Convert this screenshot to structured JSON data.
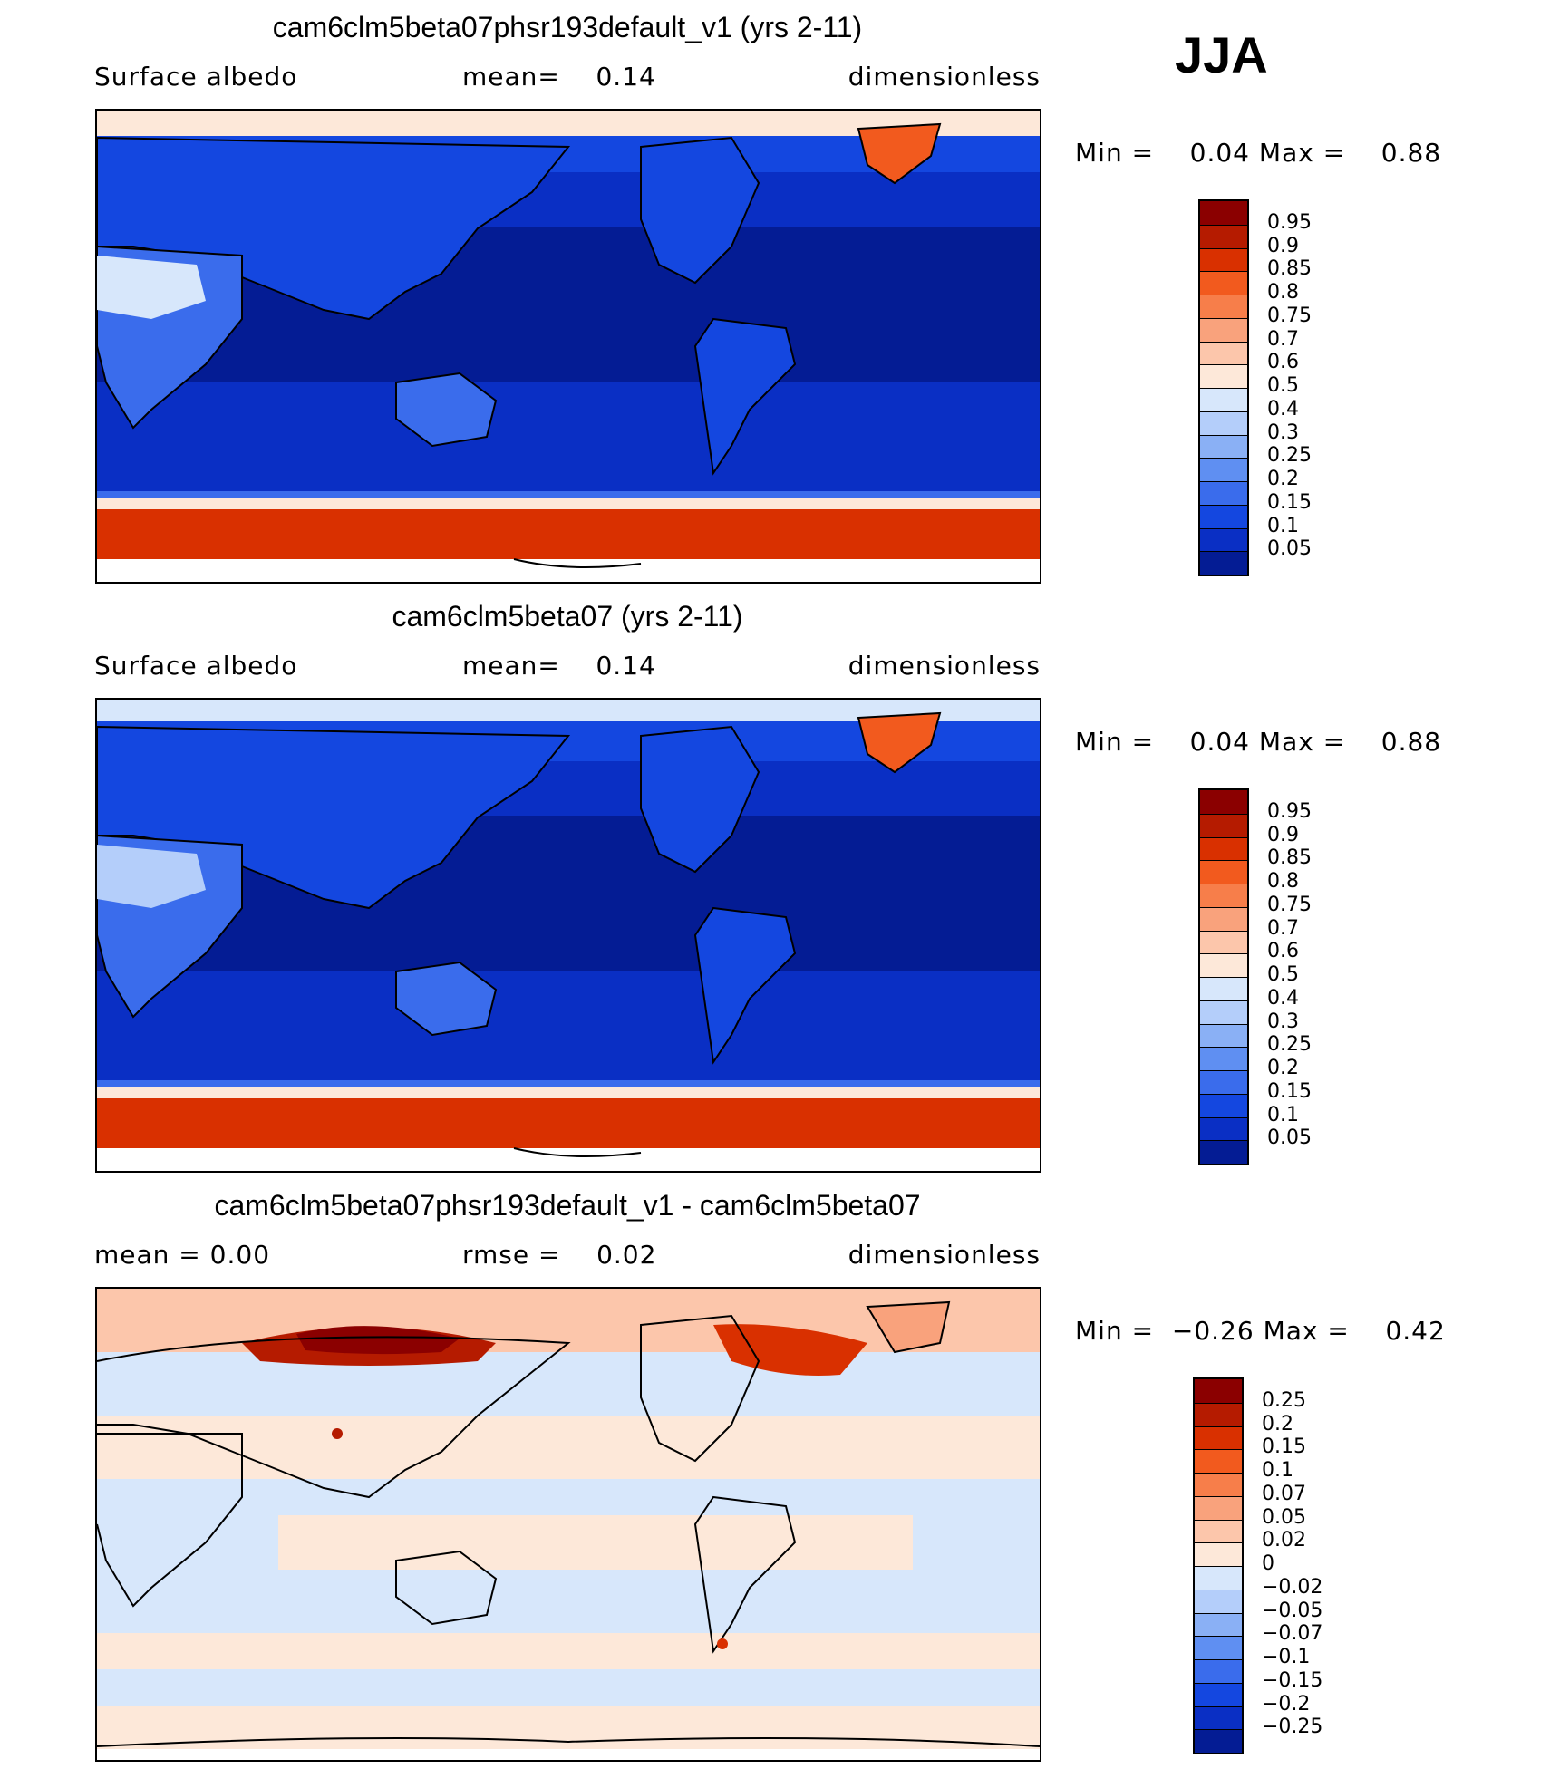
{
  "season": "JJA",
  "panels": [
    {
      "title": "cam6clm5beta07phsr193default_v1 (yrs 2-11)",
      "left_text": "Surface albedo",
      "mid_label": "mean=",
      "mid_value": "0.14",
      "right_text": "dimensionless",
      "min_label": "Min =",
      "min_value": "0.04",
      "max_label": "Max =",
      "max_value": "0.88",
      "kind": "absolute"
    },
    {
      "title": "cam6clm5beta07 (yrs 2-11)",
      "left_text": "Surface albedo",
      "mid_label": "mean=",
      "mid_value": "0.14",
      "right_text": "dimensionless",
      "min_label": "Min =",
      "min_value": "0.04",
      "max_label": "Max =",
      "max_value": "0.88",
      "kind": "absolute"
    },
    {
      "title": "cam6clm5beta07phsr193default_v1 - cam6clm5beta07",
      "left_text": "mean =    0.00",
      "mid_label": "rmse =",
      "mid_value": "0.02",
      "right_text": "dimensionless",
      "min_label": "Min =",
      "min_value": "−0.26",
      "max_label": "Max =",
      "max_value": "0.42",
      "kind": "difference"
    }
  ],
  "colorbars": {
    "absolute": {
      "labels": [
        "0.95",
        "0.9",
        "0.85",
        "0.8",
        "0.75",
        "0.7",
        "0.6",
        "0.5",
        "0.4",
        "0.3",
        "0.25",
        "0.2",
        "0.15",
        "0.1",
        "0.05"
      ],
      "colors": [
        "#8b0000",
        "#b51b00",
        "#d93000",
        "#f25a1e",
        "#f77e4a",
        "#f9a27c",
        "#fcc6ab",
        "#fde8d9",
        "#d7e7fb",
        "#b4cefa",
        "#8ab0f5",
        "#5f8ff2",
        "#3a6cec",
        "#1447e0",
        "#0a2fc4",
        "#041c94"
      ]
    },
    "difference": {
      "labels": [
        "0.25",
        "0.2",
        "0.15",
        "0.1",
        "0.07",
        "0.05",
        "0.02",
        "0",
        "−0.02",
        "−0.05",
        "−0.07",
        "−0.1",
        "−0.15",
        "−0.2",
        "−0.25"
      ],
      "colors": [
        "#8b0000",
        "#b51b00",
        "#d93000",
        "#f25a1e",
        "#f77e4a",
        "#f9a27c",
        "#fcc6ab",
        "#fde8d9",
        "#d7e7fb",
        "#b4cefa",
        "#8ab0f5",
        "#5f8ff2",
        "#3a6cec",
        "#1447e0",
        "#0a2fc4",
        "#041c94"
      ]
    }
  }
}
